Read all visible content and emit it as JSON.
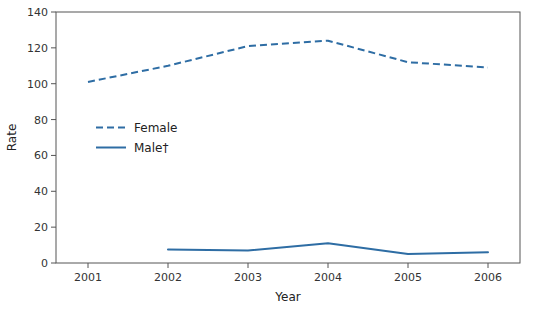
{
  "chart_data": {
    "type": "line",
    "xlabel": "Year",
    "ylabel": "Rate",
    "x": [
      2001,
      2002,
      2003,
      2004,
      2005,
      2006
    ],
    "series": [
      {
        "name": "Female",
        "color": "#2e6da4",
        "line_style": "dashed",
        "values": [
          101,
          110,
          121,
          124,
          112,
          109
        ]
      },
      {
        "name": "Male†",
        "color": "#2e6da4",
        "line_style": "solid",
        "values": [
          null,
          7.5,
          7,
          11,
          5,
          6
        ]
      }
    ],
    "xlim": [
      2000.6,
      2006.4
    ],
    "xticks": [
      2001,
      2002,
      2003,
      2004,
      2005,
      2006
    ],
    "ylim": [
      0,
      140
    ],
    "yticks": [
      0,
      20,
      40,
      60,
      80,
      100,
      120,
      140
    ],
    "grid": false,
    "legend": "center left"
  }
}
